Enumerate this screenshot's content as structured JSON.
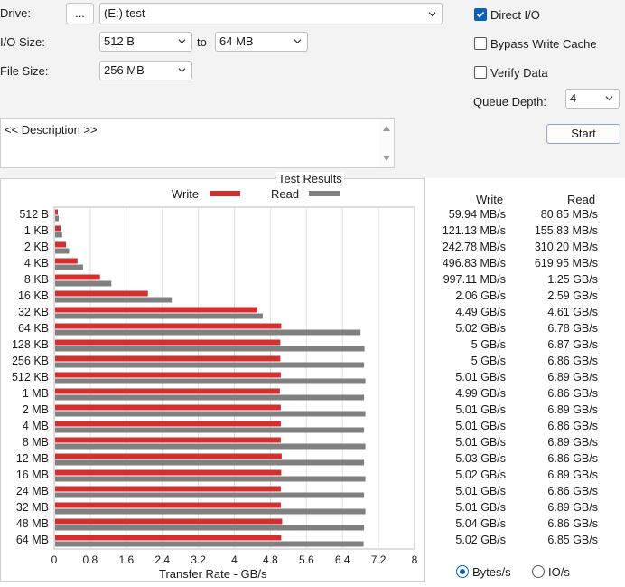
{
  "settings": {
    "drive_label": "Drive:",
    "browse_label": "...",
    "drive_value": "(E:) test",
    "io_size_label": "I/O Size:",
    "io_from": "512 B",
    "to_label": "to",
    "io_to": "64 MB",
    "file_size_label": "File Size:",
    "file_size_value": "256 MB",
    "direct_io_label": "Direct I/O",
    "direct_io_checked": true,
    "bypass_label": "Bypass Write Cache",
    "bypass_checked": false,
    "verify_label": "Verify Data",
    "verify_checked": false,
    "queue_depth_label": "Queue Depth:",
    "queue_depth_value": "4",
    "start_label": "Start",
    "description_text": "<< Description >>"
  },
  "results": {
    "title": "Test Results",
    "legend_write": "Write",
    "legend_read": "Read",
    "col_write": "Write",
    "col_read": "Read",
    "write_values": [
      "59.94 MB/s",
      "121.13 MB/s",
      "242.78 MB/s",
      "496.83 MB/s",
      "997.11 MB/s",
      "2.06 GB/s",
      "4.49 GB/s",
      "5.02 GB/s",
      "5 GB/s",
      "5 GB/s",
      "5.01 GB/s",
      "4.99 GB/s",
      "5.01 GB/s",
      "5.01 GB/s",
      "5.01 GB/s",
      "5.03 GB/s",
      "5.02 GB/s",
      "5.01 GB/s",
      "5.01 GB/s",
      "5.04 GB/s",
      "5.02 GB/s"
    ],
    "read_values": [
      "80.85 MB/s",
      "155.83 MB/s",
      "310.20 MB/s",
      "619.95 MB/s",
      "1.25 GB/s",
      "2.59 GB/s",
      "4.61 GB/s",
      "6.78 GB/s",
      "6.87 GB/s",
      "6.86 GB/s",
      "6.89 GB/s",
      "6.86 GB/s",
      "6.89 GB/s",
      "6.86 GB/s",
      "6.89 GB/s",
      "6.86 GB/s",
      "6.89 GB/s",
      "6.86 GB/s",
      "6.89 GB/s",
      "6.86 GB/s",
      "6.85 GB/s"
    ],
    "xlabel": "Transfer Rate - GB/s",
    "radio_bytes": "Bytes/s",
    "radio_io": "IO/s",
    "bytes_selected": true
  },
  "chart_data": {
    "type": "bar",
    "orientation": "horizontal",
    "categories": [
      "512 B",
      "1 KB",
      "2 KB",
      "4 KB",
      "8 KB",
      "16 KB",
      "32 KB",
      "64 KB",
      "128 KB",
      "256 KB",
      "512 KB",
      "1 MB",
      "2 MB",
      "4 MB",
      "8 MB",
      "12 MB",
      "16 MB",
      "24 MB",
      "32 MB",
      "48 MB",
      "64 MB"
    ],
    "series": [
      {
        "name": "Write",
        "color": "#d32f2f",
        "values": [
          0.06,
          0.121,
          0.243,
          0.497,
          0.997,
          2.06,
          4.49,
          5.02,
          5.0,
          5.0,
          5.01,
          4.99,
          5.01,
          5.01,
          5.01,
          5.03,
          5.02,
          5.01,
          5.01,
          5.04,
          5.02
        ]
      },
      {
        "name": "Read",
        "color": "#808080",
        "values": [
          0.081,
          0.156,
          0.31,
          0.62,
          1.25,
          2.59,
          4.61,
          6.78,
          6.87,
          6.86,
          6.89,
          6.86,
          6.89,
          6.86,
          6.89,
          6.86,
          6.89,
          6.86,
          6.89,
          6.86,
          6.85
        ]
      }
    ],
    "xlabel": "Transfer Rate - GB/s",
    "xlim": [
      0,
      8
    ],
    "xticks": [
      "0",
      "0.8",
      "1.6",
      "2.4",
      "3.2",
      "4",
      "4.8",
      "5.6",
      "6.4",
      "7.2",
      "8"
    ],
    "grid": true,
    "legend": "top"
  }
}
